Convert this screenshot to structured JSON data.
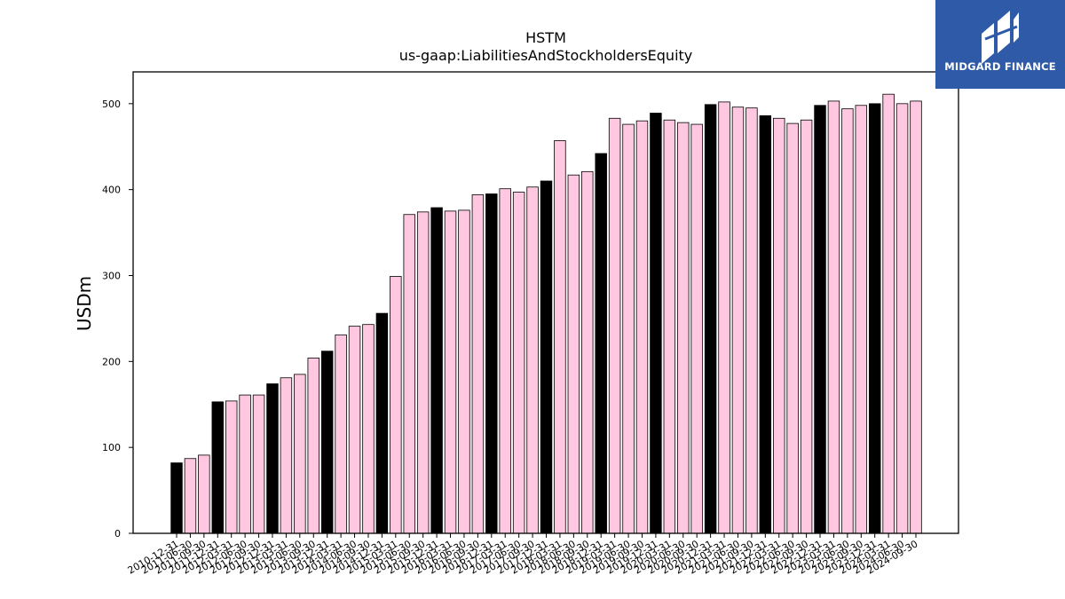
{
  "brand": {
    "name": "MIDGARD FINANCE",
    "color": "#2e5aa8"
  },
  "chart_data": {
    "type": "bar",
    "title": "HSTM",
    "subtitle": "us-gaap:LiabilitiesAndStockholdersEquity",
    "xlabel": "",
    "ylabel": "USDm",
    "ylim": [
      0,
      537
    ],
    "yticks": [
      0,
      100,
      200,
      300,
      400,
      500
    ],
    "grid": false,
    "colors": {
      "fiscal_year_end": "#000000",
      "quarter": "#ffc8e0",
      "edge": "#000000"
    },
    "categories": [
      "2010-12-31",
      "2011-06-30",
      "2011-09-30",
      "2011-12-31",
      "2012-03-31",
      "2012-06-30",
      "2012-09-30",
      "2012-12-31",
      "2013-03-31",
      "2013-06-30",
      "2013-09-30",
      "2013-12-31",
      "2014-03-31",
      "2014-06-30",
      "2014-09-30",
      "2014-12-31",
      "2015-03-31",
      "2015-06-30",
      "2015-09-30",
      "2015-12-31",
      "2016-03-31",
      "2016-06-30",
      "2016-09-30",
      "2016-12-31",
      "2017-03-31",
      "2017-06-30",
      "2017-09-30",
      "2017-12-31",
      "2018-03-31",
      "2018-06-30",
      "2018-09-30",
      "2018-12-31",
      "2019-03-31",
      "2019-06-30",
      "2019-09-30",
      "2019-12-31",
      "2020-03-31",
      "2020-06-30",
      "2020-09-30",
      "2020-12-31",
      "2021-03-31",
      "2021-06-30",
      "2021-09-30",
      "2021-12-31",
      "2022-03-31",
      "2022-06-30",
      "2022-09-30",
      "2022-12-31",
      "2023-03-31",
      "2023-06-30",
      "2023-09-30",
      "2023-12-31",
      "2024-03-31",
      "2024-06-30",
      "2024-09-30"
    ],
    "values": [
      82,
      87,
      91,
      153,
      154,
      161,
      161,
      174,
      181,
      185,
      204,
      212,
      231,
      241,
      243,
      256,
      299,
      371,
      374,
      379,
      375,
      376,
      394,
      395,
      401,
      397,
      403,
      410,
      457,
      417,
      421,
      442,
      483,
      476,
      480,
      489,
      481,
      478,
      476,
      499,
      502,
      496,
      495,
      486,
      483,
      477,
      481,
      498,
      503,
      494,
      498,
      500,
      511,
      500,
      503
    ],
    "fiscal_year_end_flags": [
      1,
      0,
      0,
      1,
      0,
      0,
      0,
      1,
      0,
      0,
      0,
      1,
      0,
      0,
      0,
      1,
      0,
      0,
      0,
      1,
      0,
      0,
      0,
      1,
      0,
      0,
      0,
      1,
      0,
      0,
      0,
      1,
      0,
      0,
      0,
      1,
      0,
      0,
      0,
      1,
      0,
      0,
      0,
      1,
      0,
      0,
      0,
      1,
      0,
      0,
      0,
      1,
      0,
      0,
      0
    ]
  }
}
